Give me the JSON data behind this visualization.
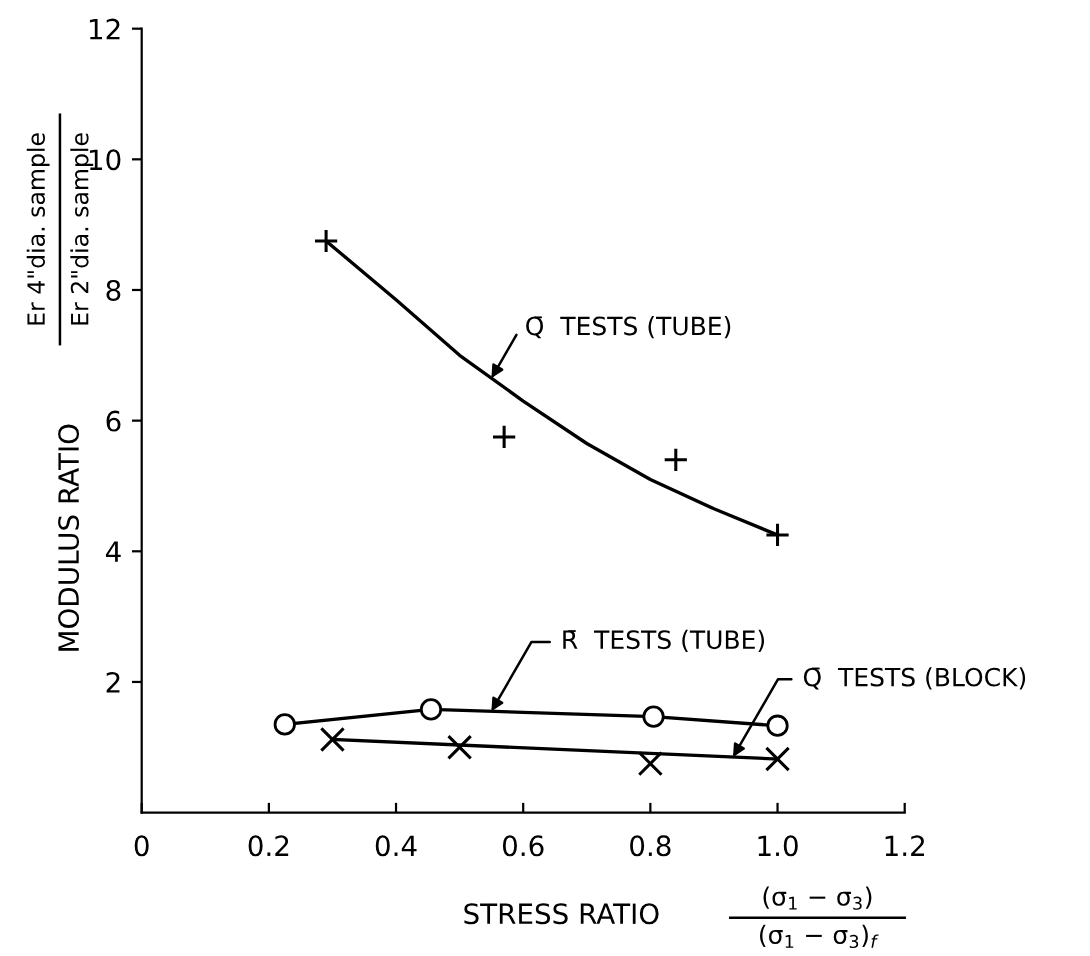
{
  "chart_data": {
    "type": "line",
    "xlabel": "STRESS RATIO",
    "ylabel": "MODULUS RATIO",
    "annotations": [
      "Er 4\"dia. sample",
      "Er 2\"dia. sample",
      "(σ$_{1}$ − σ$_{3}$)",
      "(σ$_{1}$ − σ$_{3}$)$_{f}$"
    ],
    "xlim": [
      0,
      1.2
    ],
    "ylim": [
      0,
      12
    ],
    "xticks": [
      0,
      0.2,
      0.4,
      0.6,
      0.8,
      {
        "value": 1.0,
        "label": "1.0"
      },
      1.2
    ],
    "yticks": [
      2,
      4,
      6,
      8,
      10,
      12
    ],
    "grid": false,
    "legend": false,
    "series": [
      {
        "name": "Q̄  TESTS (TUBE)",
        "marker": "none",
        "color": "#000000",
        "x": [
          0.29,
          0.4,
          0.5,
          0.6,
          0.7,
          0.8,
          0.9,
          1.0
        ],
        "values": [
          8.75,
          7.85,
          7.0,
          6.3,
          5.65,
          5.1,
          4.65,
          4.25
        ]
      },
      {
        "type": "scatter",
        "marker": "plus",
        "color": "#000000",
        "x": [
          0.29,
          0.57,
          0.84,
          1.0
        ],
        "values": [
          8.75,
          5.75,
          5.4,
          4.25
        ]
      },
      {
        "name": "R̄  TESTS (TUBE)",
        "marker": "circle",
        "color": "#000000",
        "x": [
          0.225,
          0.455,
          0.805,
          1.0
        ],
        "values": [
          1.35,
          1.58,
          1.47,
          1.33
        ]
      },
      {
        "name": "Q̄  TESTS (BLOCK)",
        "marker": "none",
        "color": "#000000",
        "x": [
          0.3,
          1.0
        ],
        "values": [
          1.12,
          0.82
        ]
      },
      {
        "type": "scatter",
        "marker": "cross",
        "color": "#000000",
        "x": [
          0.3,
          0.5,
          0.8,
          1.0
        ],
        "values": [
          1.12,
          1.0,
          0.75,
          0.82
        ]
      }
    ]
  }
}
